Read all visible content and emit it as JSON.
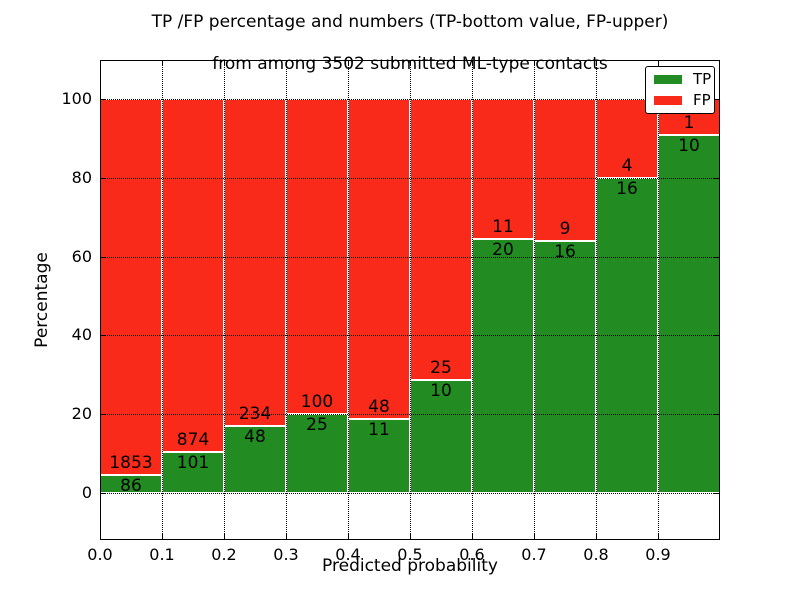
{
  "title": {
    "line1": "TP /FP percentage and numbers (TP-bottom value, FP-upper)",
    "line2": "from among 3502 submitted ML-type contacts"
  },
  "axes": {
    "xlabel": "Predicted probability",
    "ylabel": "Percentage",
    "yticks": [
      0,
      20,
      40,
      60,
      80,
      100
    ],
    "xticks": [
      "0.0",
      "0.1",
      "0.2",
      "0.3",
      "0.4",
      "0.5",
      "0.6",
      "0.7",
      "0.8",
      "0.9"
    ]
  },
  "legend": {
    "items": [
      {
        "label": "TP",
        "color": "#228b22"
      },
      {
        "label": "FP",
        "color": "#fa2a1a"
      }
    ],
    "position": "upper right"
  },
  "colors": {
    "tp_green": "#228b22",
    "fp_red": "#fa2a1a",
    "bar_edge": "#ffffff",
    "grid": "#000000",
    "background": "#ffffff"
  },
  "chart_data": {
    "type": "bar",
    "stacked": true,
    "title": "TP /FP percentage and numbers (TP-bottom value, FP-upper) from among 3502 submitted ML-type contacts",
    "xlabel": "Predicted probability",
    "ylabel": "Percentage",
    "total_contacts": 3502,
    "bin_edges": [
      0.0,
      0.1,
      0.2,
      0.3,
      0.4,
      0.5,
      0.6,
      0.7,
      0.8,
      0.9,
      1.0
    ],
    "series": [
      {
        "name": "TP",
        "position": "bottom",
        "color": "#228b22",
        "counts": [
          86,
          101,
          48,
          25,
          11,
          10,
          20,
          16,
          16,
          10
        ]
      },
      {
        "name": "FP",
        "position": "top",
        "color": "#fa2a1a",
        "counts": [
          1853,
          874,
          234,
          100,
          48,
          25,
          11,
          9,
          4,
          1
        ]
      }
    ],
    "tp_percent_per_bin": [
      4.43,
      10.36,
      17.02,
      20.0,
      18.64,
      28.57,
      64.52,
      64.0,
      80.0,
      90.91
    ],
    "bar_total_percent": 100,
    "value_labels": "counts drawn on bars: TP count just below TP/FP boundary, FP count just above",
    "xlim": [
      0.0,
      1.0
    ],
    "ylim_display": [
      -12,
      110
    ],
    "grid": "dotted, both axes",
    "legend_position": "upper right"
  }
}
